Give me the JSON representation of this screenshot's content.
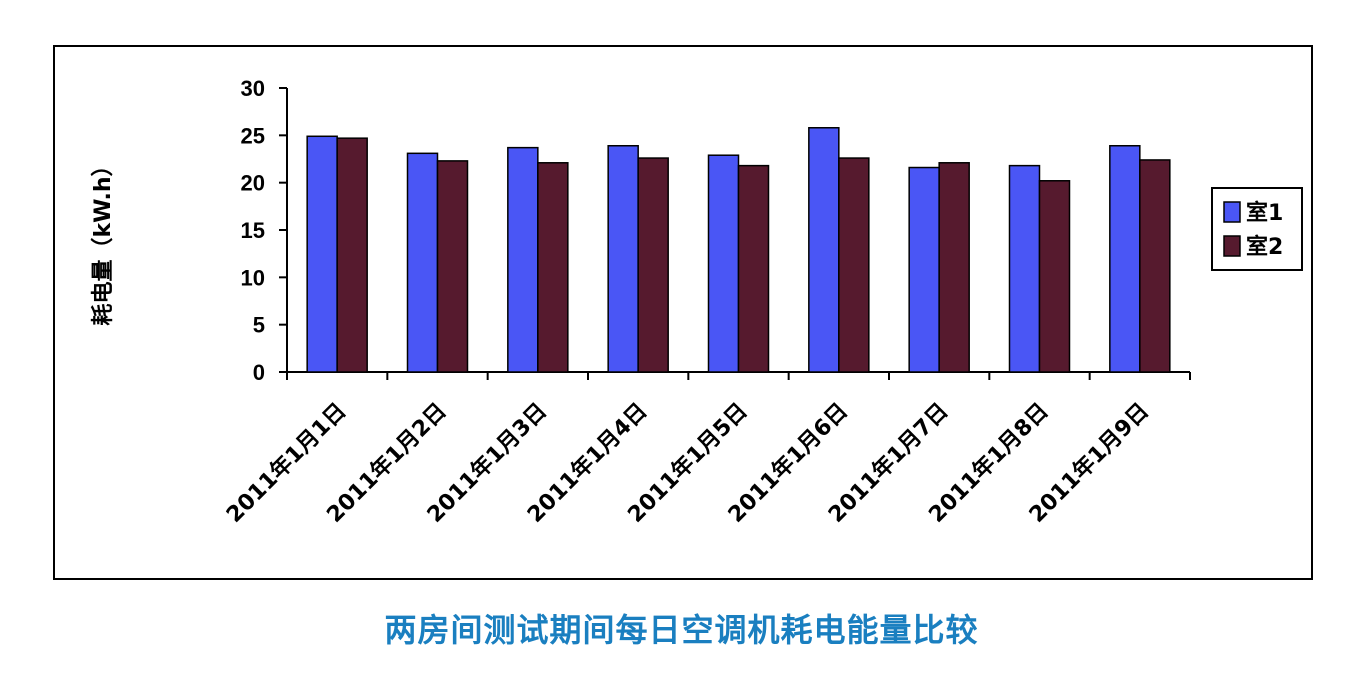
{
  "caption": "两房间测试期间每日空调机耗电能量比较",
  "chart_data": {
    "type": "bar",
    "title": "",
    "xlabel": "",
    "ylabel": "耗电量（kW.h）",
    "ylim": [
      0,
      30
    ],
    "yticks": [
      0,
      5,
      10,
      15,
      20,
      25,
      30
    ],
    "grid": false,
    "legend_position": "right",
    "categories": [
      "2011年1月1日",
      "2011年1月2日",
      "2011年1月3日",
      "2011年1月4日",
      "2011年1月5日",
      "2011年1月6日",
      "2011年1月7日",
      "2011年1月8日",
      "2011年1月9日"
    ],
    "series": [
      {
        "name": "室1",
        "color": "#4a56f5",
        "values": [
          24.9,
          23.1,
          23.7,
          23.9,
          22.9,
          25.8,
          21.6,
          21.8,
          23.9
        ]
      },
      {
        "name": "室2",
        "color": "#561a2e",
        "values": [
          24.7,
          22.3,
          22.1,
          22.6,
          21.8,
          22.6,
          22.1,
          20.2,
          22.4
        ]
      }
    ]
  }
}
